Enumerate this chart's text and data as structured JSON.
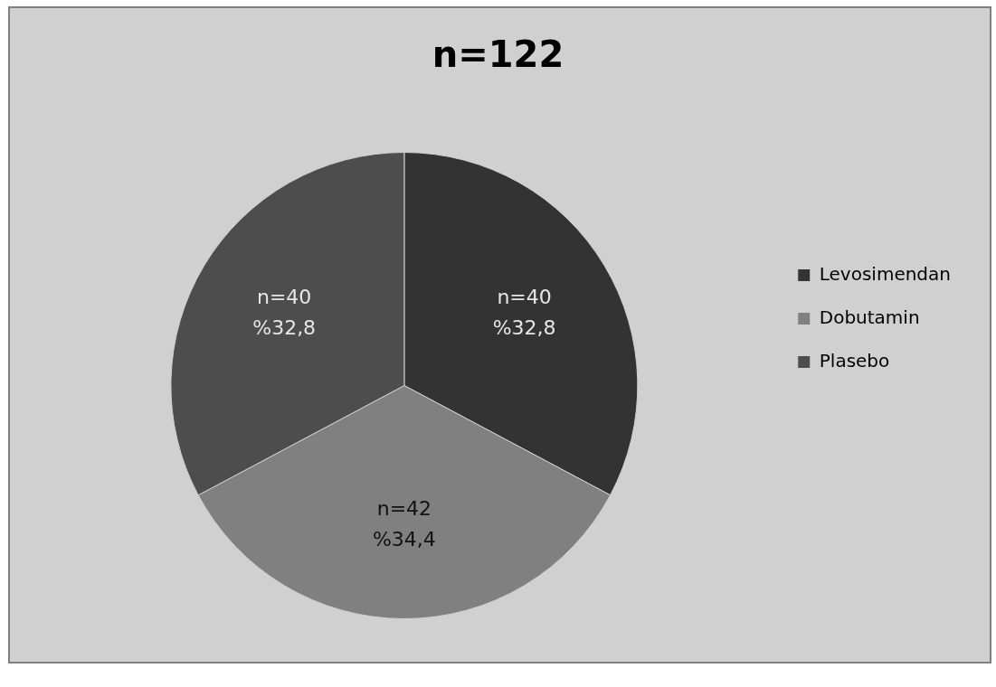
{
  "chart_data": {
    "type": "pie",
    "title": "n=122",
    "categories": [
      "Levosimendan",
      "Dobutamin",
      "Plasebo"
    ],
    "values": [
      40,
      42,
      40
    ],
    "colors": [
      "#333333",
      "#808080",
      "#4d4d4d"
    ],
    "value_labels": [
      "n=40\n%32,8",
      "n=42\n%34,4",
      "n=40\n%32,8"
    ],
    "legend": "right"
  }
}
